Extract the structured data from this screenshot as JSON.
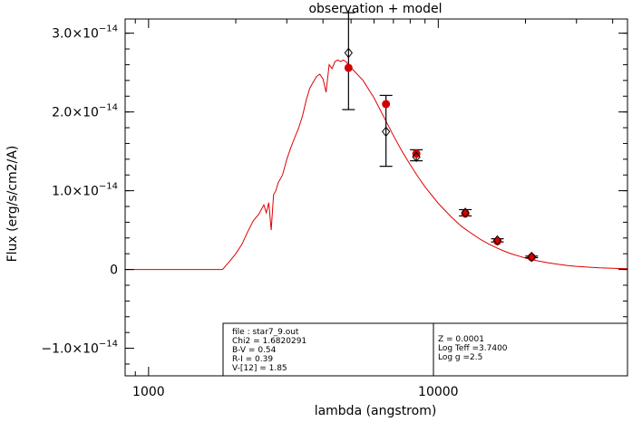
{
  "chart_data": {
    "type": "line",
    "title": "observation + model",
    "xlabel": "lambda (angstrom)",
    "ylabel": "Flux (erg/s/cm2/A)",
    "x_scale": "log",
    "xlim": [
      830,
      45000
    ],
    "ylim": [
      -1.35e-14,
      3.18e-14
    ],
    "x_tick_labels": [
      {
        "value": 1000,
        "label": "1000"
      },
      {
        "value": 10000,
        "label": "10000"
      }
    ],
    "y_tick_labels": [
      {
        "value": -1e-14,
        "mant": "−1.0×10",
        "exp": "−14"
      },
      {
        "value": 0,
        "mant": "0",
        "exp": ""
      },
      {
        "value": 1e-14,
        "mant": "1.0×10",
        "exp": "−14"
      },
      {
        "value": 2e-14,
        "mant": "2.0×10",
        "exp": "−14"
      },
      {
        "value": 3e-14,
        "mant": "3.0×10",
        "exp": "−14"
      }
    ],
    "colors": {
      "model": "#e00000",
      "observed": "#d40000",
      "errorbar": "#000000"
    },
    "model": {
      "name": "model",
      "x": [
        830,
        1000,
        1500,
        1800,
        1850,
        1900,
        2000,
        2100,
        2200,
        2300,
        2400,
        2500,
        2550,
        2600,
        2650,
        2700,
        2750,
        2800,
        2900,
        3000,
        3100,
        3200,
        3300,
        3400,
        3500,
        3600,
        3700,
        3800,
        3900,
        4000,
        4100,
        4200,
        4300,
        4400,
        4500,
        4600,
        4700,
        4800,
        5000,
        5500,
        6000,
        6500,
        7000,
        7500,
        8000,
        8500,
        9000,
        10000,
        11000,
        12000,
        13000,
        14000,
        15000,
        16000,
        17000,
        18000,
        19000,
        20000,
        22000,
        24000,
        26000,
        28000,
        30000,
        33000,
        36000,
        40000,
        45000
      ],
      "y": [
        0,
        0,
        0,
        0,
        5e-16,
        1e-15,
        2e-15,
        3.2e-15,
        4.8e-15,
        6.2e-15,
        7e-15,
        8.2e-15,
        7.2e-15,
        8.5e-15,
        5e-15,
        9.5e-15,
        1e-14,
        1.1e-14,
        1.2e-14,
        1.4e-14,
        1.55e-14,
        1.68e-14,
        1.8e-14,
        1.95e-14,
        2.15e-14,
        2.3e-14,
        2.38e-14,
        2.45e-14,
        2.48e-14,
        2.42e-14,
        2.25e-14,
        2.6e-14,
        2.55e-14,
        2.64e-14,
        2.66e-14,
        2.64e-14,
        2.66e-14,
        2.64e-14,
        2.56e-14,
        2.4e-14,
        2.18e-14,
        1.93e-14,
        1.7e-14,
        1.5e-14,
        1.33e-14,
        1.18e-14,
        1.05e-14,
        8.4e-15,
        6.8e-15,
        5.5e-15,
        4.6e-15,
        3.8e-15,
        3.2e-15,
        2.7e-15,
        2.3e-15,
        1.95e-15,
        1.7e-15,
        1.45e-15,
        1.1e-15,
        8.5e-16,
        6.5e-16,
        5e-16,
        4e-16,
        3e-16,
        2e-16,
        1.5e-16,
        1e-16
      ]
    },
    "observed": {
      "name": "observation",
      "x": [
        4900,
        6600,
        8400,
        12400,
        16000,
        21000
      ],
      "y": [
        2.75e-14,
        1.75e-14,
        1.43e-14,
        7.2e-15,
        3.7e-15,
        1.6e-15
      ],
      "yerr_low": [
        2.03e-14,
        1.31e-14,
        1.38e-14,
        6.8e-15,
        3.5e-15,
        1.5e-15
      ],
      "yerr_high": [
        3.26e-14,
        2.21e-14,
        1.52e-14,
        7.6e-15,
        3.9e-15,
        1.7e-15
      ]
    },
    "model_points": {
      "name": "model",
      "x": [
        4900,
        6600,
        8400,
        12400,
        16000,
        21000
      ],
      "y": [
        2.56e-14,
        2.1e-14,
        1.47e-14,
        7.1e-15,
        3.6e-15,
        1.55e-15
      ]
    }
  },
  "info_box": {
    "left": [
      "file : star7_9.out",
      "Chi2 = 1.6820291",
      " B-V = 0.54",
      " R-I = 0.39",
      " V-[12] = 1.85"
    ],
    "right": [
      "Z =    0.0001",
      "Log Teff =3.7400",
      "Log g =2.5"
    ]
  }
}
